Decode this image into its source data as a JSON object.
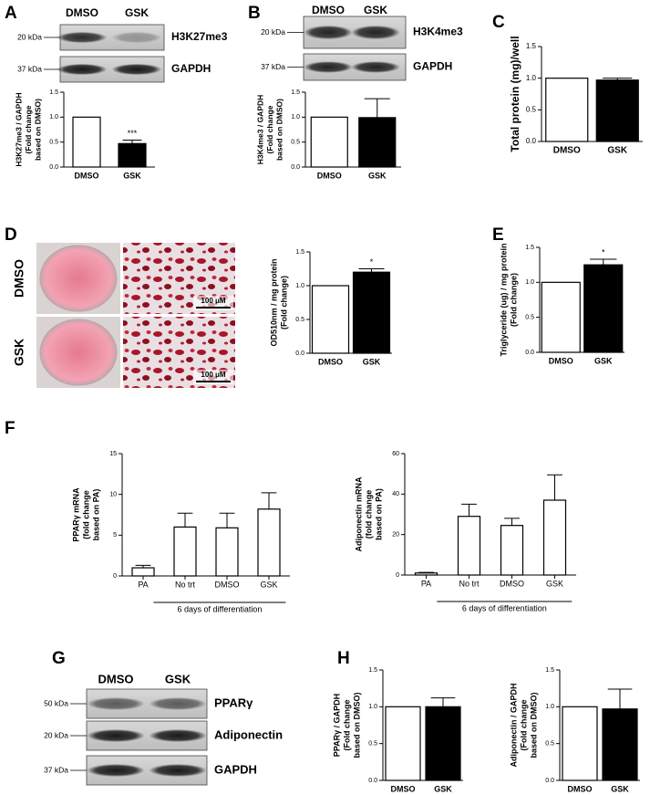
{
  "panel_letters": [
    "A",
    "B",
    "C",
    "D",
    "E",
    "F",
    "G",
    "H"
  ],
  "blots": [
    {
      "lanes": [
        "DMSO",
        "GSK"
      ],
      "bands": [
        {
          "size": "20 kDa",
          "label": "H3K27me3"
        },
        {
          "size": "37 kDa",
          "label": "GAPDH"
        }
      ]
    },
    {
      "lanes": [
        "DMSO",
        "GSK"
      ],
      "bands": [
        {
          "size": "20 kDa",
          "label": "H3K4me3"
        },
        {
          "size": "37 kDa",
          "label": "GAPDH"
        }
      ]
    },
    {
      "lanes": [
        "DMSO",
        "GSK"
      ],
      "bands": [
        {
          "size": "50 kDa",
          "label": "PPARγ"
        },
        {
          "size": "20 kDa",
          "label": "Adiponectin"
        },
        {
          "size": "37 kDa",
          "label": "GAPDH"
        }
      ]
    }
  ],
  "stain": {
    "rows": [
      "DMSO",
      "GSK"
    ],
    "scale_bars": [
      "100 μM",
      "100 μM"
    ]
  },
  "chart_data": [
    {
      "type": "bar",
      "y_label": [
        "H3K27me3 / GAPDH",
        "(Fold change",
        "based on DMSO)"
      ],
      "categories": [
        "DMSO",
        "GSK"
      ],
      "values": [
        1.0,
        0.47
      ],
      "errors": [
        0,
        0.07
      ],
      "colors": [
        "#ffffff",
        "#000000"
      ],
      "significance": [
        null,
        "***"
      ],
      "ylim": [
        0,
        1.5
      ],
      "yticks": [
        {
          "value": 0,
          "label": "0.0"
        },
        {
          "value": 0.5,
          "label": "0.5"
        },
        {
          "value": 1,
          "label": "1.0"
        },
        {
          "value": 1.5,
          "label": "1.5"
        }
      ]
    },
    {
      "type": "bar",
      "y_label": [
        "H3K4me3 / GAPDH",
        "(Fold change",
        "based on DMSO)"
      ],
      "categories": [
        "DMSO",
        "GSK"
      ],
      "values": [
        1.0,
        0.99
      ],
      "errors": [
        0,
        0.38
      ],
      "colors": [
        "#ffffff",
        "#000000"
      ],
      "ylim": [
        0,
        1.5
      ],
      "yticks": [
        {
          "value": 0,
          "label": "0.0"
        },
        {
          "value": 0.5,
          "label": "0.5"
        },
        {
          "value": 1,
          "label": "1.0"
        },
        {
          "value": 1.5,
          "label": "1.5"
        }
      ]
    },
    {
      "type": "bar",
      "y_label": [
        "Total protein (mg)/well"
      ],
      "categories": [
        "DMSO",
        "GSK"
      ],
      "values": [
        1.0,
        0.97
      ],
      "errors": [
        0,
        0.03
      ],
      "colors": [
        "#ffffff",
        "#000000"
      ],
      "ylim": [
        0,
        1.5
      ],
      "yticks": [
        {
          "value": 0,
          "label": "0.0"
        },
        {
          "value": 0.5,
          "label": "0.5"
        },
        {
          "value": 1,
          "label": "1.0"
        },
        {
          "value": 1.5,
          "label": "1.5"
        }
      ]
    },
    {
      "type": "bar",
      "y_label": [
        "OD510nm / mg protein",
        "(Fold change)"
      ],
      "categories": [
        "DMSO",
        "GSK"
      ],
      "values": [
        1.0,
        1.2
      ],
      "errors": [
        0,
        0.05
      ],
      "colors": [
        "#ffffff",
        "#000000"
      ],
      "significance": [
        null,
        "*"
      ],
      "ylim": [
        0,
        1.5
      ],
      "yticks": [
        {
          "value": 0,
          "label": "0.0"
        },
        {
          "value": 0.5,
          "label": "0.5"
        },
        {
          "value": 1,
          "label": "1.0"
        },
        {
          "value": 1.5,
          "label": "1.5"
        }
      ]
    },
    {
      "type": "bar",
      "y_label": [
        "Triglyceride (ug) / mg protein",
        "(Fold change)"
      ],
      "categories": [
        "DMSO",
        "GSK"
      ],
      "values": [
        1.0,
        1.25
      ],
      "errors": [
        0,
        0.08
      ],
      "colors": [
        "#ffffff",
        "#000000"
      ],
      "significance": [
        null,
        "*"
      ],
      "ylim": [
        0,
        1.5
      ],
      "yticks": [
        {
          "value": 0,
          "label": "0.0"
        },
        {
          "value": 0.5,
          "label": "0.5"
        },
        {
          "value": 1,
          "label": "1.0"
        },
        {
          "value": 1.5,
          "label": "1.5"
        }
      ]
    },
    {
      "type": "bar",
      "y_label": [
        "PPARγ mRNA",
        "(fold change",
        "based on PA)"
      ],
      "categories": [
        "PA",
        "No trt",
        "DMSO",
        "GSK"
      ],
      "values": [
        1.0,
        6.0,
        5.9,
        8.2
      ],
      "errors": [
        0.3,
        1.7,
        1.8,
        2.0
      ],
      "colors": [
        "#ffffff",
        "#ffffff",
        "#ffffff",
        "#ffffff"
      ],
      "x_group_label": "6 days of differentiation",
      "ylim": [
        0,
        15
      ],
      "yticks": [
        0,
        5,
        10,
        15
      ]
    },
    {
      "type": "bar",
      "y_label": [
        "Adiponectin mRNA",
        "(fold change",
        "based on PA)"
      ],
      "categories": [
        "PA",
        "No trt",
        "DMSO",
        "GSK"
      ],
      "values": [
        1.0,
        29,
        24.5,
        37
      ],
      "errors": [
        0.3,
        6,
        3.5,
        12.5
      ],
      "colors": [
        "#ffffff",
        "#ffffff",
        "#ffffff",
        "#ffffff"
      ],
      "x_group_label": "6 days of differentiation",
      "ylim": [
        0,
        60
      ],
      "yticks": [
        0,
        20,
        40,
        60
      ]
    },
    {
      "type": "bar",
      "y_label": [
        "PPARγ / GAPDH",
        "(Fold change",
        "based on DMSO)"
      ],
      "categories": [
        "DMSO",
        "GSK"
      ],
      "values": [
        1.0,
        1.0
      ],
      "errors": [
        0,
        0.12
      ],
      "colors": [
        "#ffffff",
        "#000000"
      ],
      "ylim": [
        0,
        1.5
      ],
      "yticks": [
        {
          "value": 0,
          "label": "0.0"
        },
        {
          "value": 0.5,
          "label": "0.5"
        },
        {
          "value": 1,
          "label": "1.0"
        },
        {
          "value": 1.5,
          "label": "1.5"
        }
      ]
    },
    {
      "type": "bar",
      "y_label": [
        "Adiponectin / GAPDH",
        "(Fold change",
        "based on DMSO)"
      ],
      "categories": [
        "DMSO",
        "GSK"
      ],
      "values": [
        1.0,
        0.97
      ],
      "errors": [
        0,
        0.27
      ],
      "colors": [
        "#ffffff",
        "#000000"
      ],
      "ylim": [
        0,
        1.5
      ],
      "yticks": [
        {
          "value": 0,
          "label": "0.0"
        },
        {
          "value": 0.5,
          "label": "0.5"
        },
        {
          "value": 1,
          "label": "1.0"
        },
        {
          "value": 1.5,
          "label": "1.5"
        }
      ]
    }
  ]
}
